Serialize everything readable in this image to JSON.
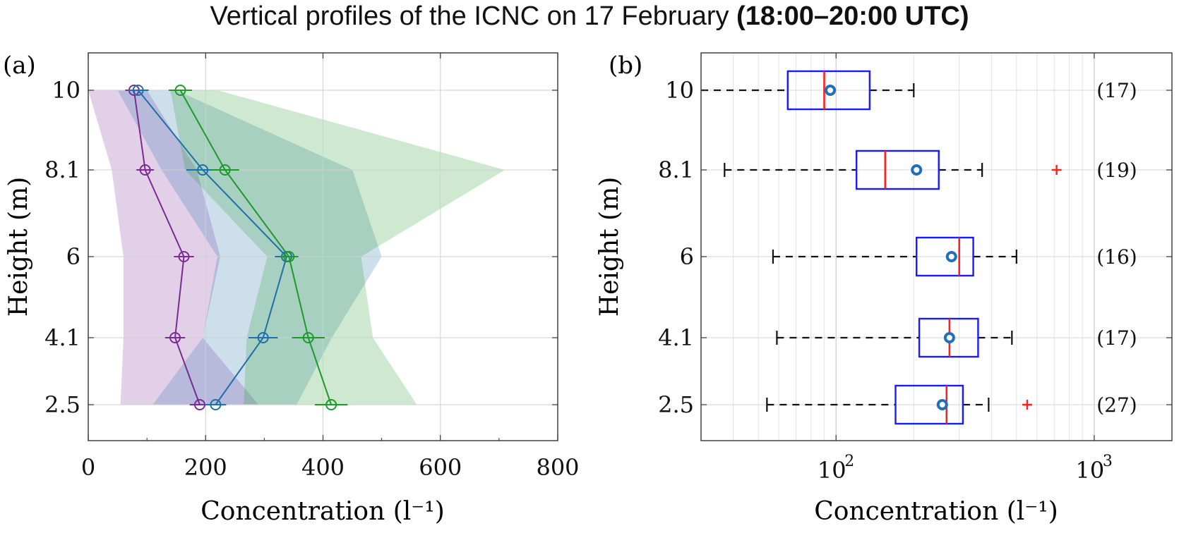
{
  "title": {
    "main": "Vertical profiles of the ICNC on 17 February",
    "emphasis": "(18:00–20:00 UTC)"
  },
  "colors": {
    "purple": "#7b2a94",
    "blue": "#1f6fa8",
    "green": "#1e9a2a",
    "box": "#1a1aff",
    "median": "#ff2020",
    "outlier": "#ff2020"
  },
  "chart_data": [
    {
      "type": "line",
      "panel_label": "(a)",
      "xlabel": "Concentration (l⁻¹)",
      "ylabel": "Height (m)",
      "xlim": [
        0,
        800
      ],
      "xticks": [
        "0",
        "200",
        "400",
        "600",
        "800"
      ],
      "yticks": [
        "2.5",
        "4.1",
        "6",
        "8.1",
        "10"
      ],
      "heights": [
        2.5,
        4.1,
        6,
        8.1,
        10
      ],
      "grid": true,
      "series": [
        {
          "color": "purple",
          "values": [
            190,
            148,
            163,
            97,
            78
          ],
          "error": [
            17,
            17,
            17,
            15,
            15
          ],
          "band_low": [
            55,
            60,
            60,
            40,
            0
          ],
          "band_high": [
            290,
            195,
            225,
            185,
            100
          ]
        },
        {
          "color": "blue",
          "values": [
            217,
            298,
            338,
            195,
            85
          ],
          "error": [
            18,
            25,
            20,
            28,
            18
          ],
          "band_low": [
            110,
            195,
            220,
            125,
            50
          ],
          "band_high": [
            355,
            415,
            500,
            450,
            150
          ]
        },
        {
          "color": "green",
          "values": [
            414,
            375,
            342,
            233,
            157
          ],
          "error": [
            28,
            28,
            15,
            24,
            20
          ],
          "band_low": [
            265,
            270,
            305,
            165,
            140
          ],
          "band_high": [
            560,
            485,
            465,
            710,
            220
          ]
        }
      ]
    },
    {
      "type": "box",
      "panel_label": "(b)",
      "xlabel": "Concentration (l⁻¹)",
      "ylabel": "Height (m)",
      "xscale": "log",
      "xlim": [
        30,
        2000
      ],
      "xticks": [
        {
          "base": "10",
          "exp": "2",
          "value": 100
        },
        {
          "base": "10",
          "exp": "3",
          "value": 1000
        }
      ],
      "yticks": [
        "2.5",
        "4.1",
        "6",
        "8.1",
        "10"
      ],
      "grid": true,
      "boxes": [
        {
          "height": "10",
          "whisker_low": 25,
          "q1": 65,
          "median": 90,
          "q3": 135,
          "whisker_high": 200,
          "mean": 95,
          "outliers": [],
          "count": "(17)"
        },
        {
          "height": "8.1",
          "whisker_low": 37,
          "q1": 120,
          "median": 155,
          "q3": 250,
          "whisker_high": 368,
          "mean": 205,
          "outliers": [
            715
          ],
          "count": "(19)"
        },
        {
          "height": "6",
          "whisker_low": 57,
          "q1": 205,
          "median": 300,
          "q3": 340,
          "whisker_high": 500,
          "mean": 280,
          "outliers": [],
          "count": "(16)"
        },
        {
          "height": "4.1",
          "whisker_low": 59,
          "q1": 210,
          "median": 275,
          "q3": 355,
          "whisker_high": 480,
          "mean": 275,
          "outliers": [],
          "count": "(17)"
        },
        {
          "height": "2.5",
          "whisker_low": 54,
          "q1": 170,
          "median": 268,
          "q3": 310,
          "whisker_high": 390,
          "mean": 258,
          "outliers": [
            550
          ],
          "count": "(27)"
        }
      ]
    }
  ]
}
